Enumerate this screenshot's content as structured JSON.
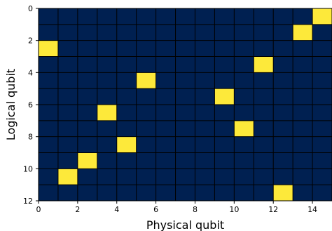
{
  "chart_data": {
    "type": "heatmap",
    "title": "",
    "xlabel": "Physical qubit",
    "ylabel": "Logical qubit",
    "xlim": [
      0,
      15
    ],
    "ylim": [
      12,
      0
    ],
    "x_ticks": [
      "0",
      "2",
      "4",
      "6",
      "8",
      "10",
      "12",
      "14"
    ],
    "y_ticks": [
      "0",
      "2",
      "4",
      "6",
      "8",
      "10",
      "12"
    ],
    "n_rows": 12,
    "n_cols": 15,
    "colors": {
      "off": "#002051",
      "on": "#fde93a",
      "grid": "#000000"
    },
    "highlighted_cells": [
      {
        "logical": 0,
        "physical": 14
      },
      {
        "logical": 1,
        "physical": 13
      },
      {
        "logical": 2,
        "physical": 0
      },
      {
        "logical": 3,
        "physical": 11
      },
      {
        "logical": 4,
        "physical": 5
      },
      {
        "logical": 5,
        "physical": 9
      },
      {
        "logical": 6,
        "physical": 3
      },
      {
        "logical": 7,
        "physical": 10
      },
      {
        "logical": 8,
        "physical": 4
      },
      {
        "logical": 9,
        "physical": 2
      },
      {
        "logical": 10,
        "physical": 1
      },
      {
        "logical": 11,
        "physical": 12
      }
    ]
  }
}
